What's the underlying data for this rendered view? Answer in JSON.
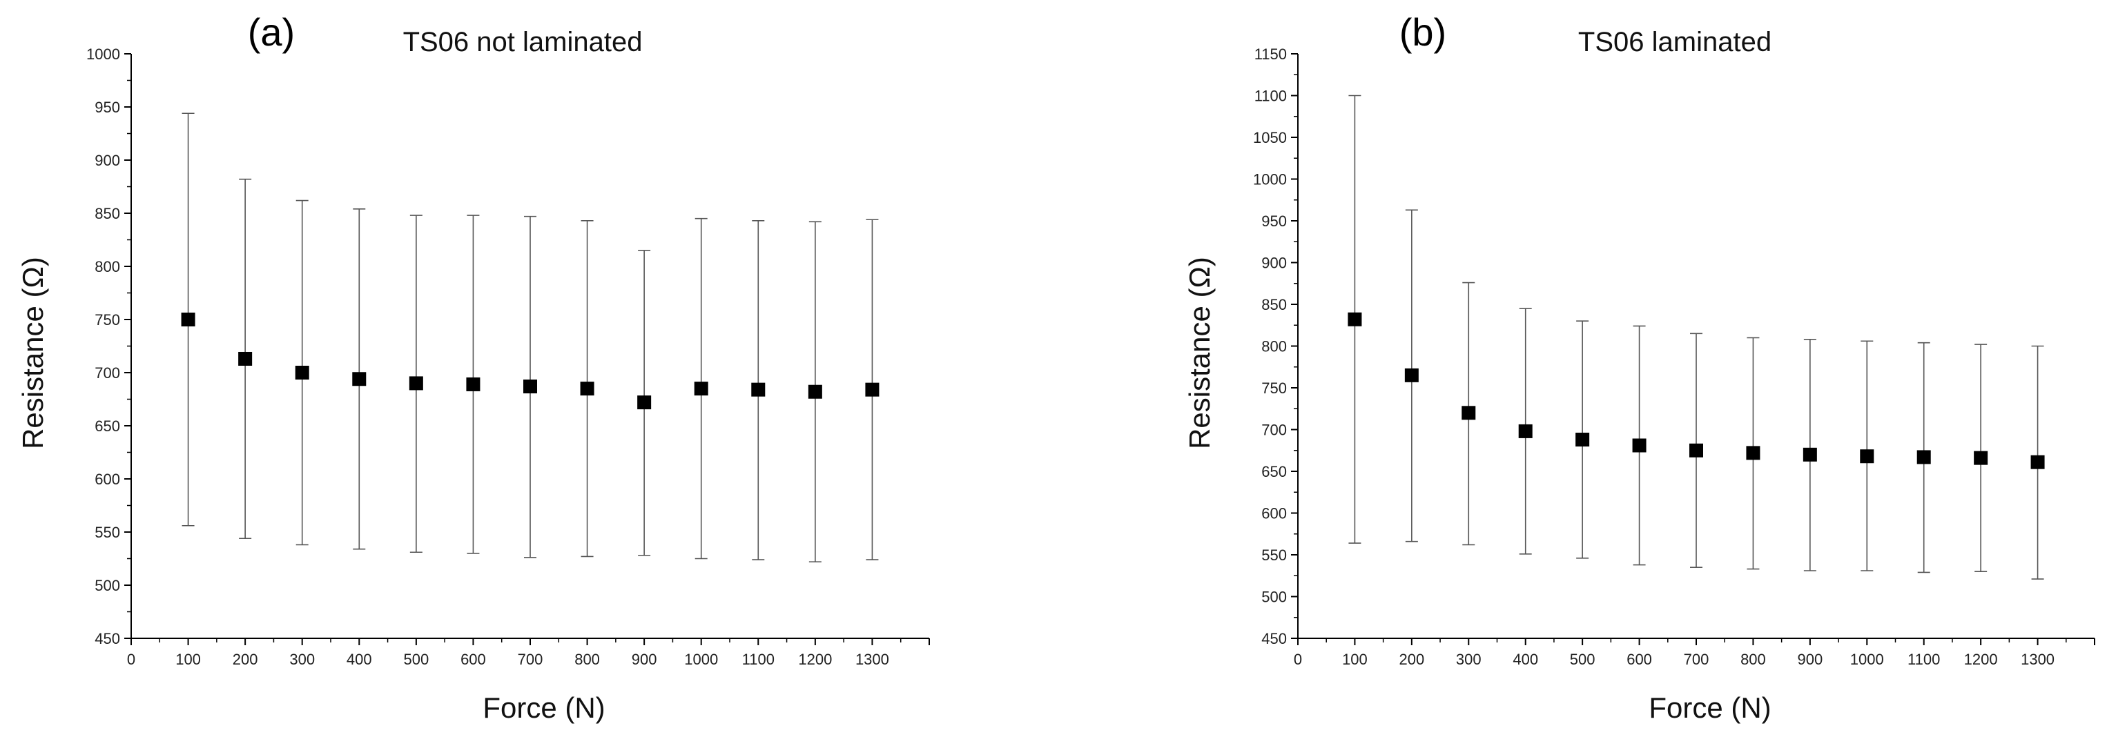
{
  "chart_data": [
    {
      "type": "scatter",
      "panel_label": "(a)",
      "title": "TS06 not laminated",
      "xlabel": "Force (N)",
      "ylabel": "Resistance (Ω)",
      "xlim": [
        0,
        1400
      ],
      "ylim": [
        450,
        1000
      ],
      "xticks": [
        0,
        100,
        200,
        300,
        400,
        500,
        600,
        700,
        800,
        900,
        1000,
        1100,
        1200,
        1300
      ],
      "yticks": [
        450,
        500,
        550,
        600,
        650,
        700,
        750,
        800,
        850,
        900,
        950,
        1000
      ],
      "grid": false,
      "series": [
        {
          "x": [
            100,
            200,
            300,
            400,
            500,
            600,
            700,
            800,
            900,
            1000,
            1100,
            1200,
            1300
          ],
          "y": [
            750,
            713,
            700,
            694,
            690,
            689,
            687,
            685,
            672,
            685,
            684,
            682,
            684
          ],
          "y_upper": [
            944,
            882,
            862,
            854,
            848,
            848,
            847,
            843,
            815,
            845,
            843,
            842,
            844
          ],
          "y_lower": [
            556,
            544,
            538,
            534,
            531,
            530,
            526,
            527,
            528,
            525,
            524,
            522,
            524
          ]
        }
      ]
    },
    {
      "type": "scatter",
      "panel_label": "(b)",
      "title": "TS06 laminated",
      "xlabel": "Force (N)",
      "ylabel": "Resistance (Ω)",
      "xlim": [
        0,
        1400
      ],
      "ylim": [
        450,
        1150
      ],
      "xticks": [
        0,
        100,
        200,
        300,
        400,
        500,
        600,
        700,
        800,
        900,
        1000,
        1100,
        1200,
        1300
      ],
      "yticks": [
        450,
        500,
        550,
        600,
        650,
        700,
        750,
        800,
        850,
        900,
        950,
        1000,
        1050,
        1100,
        1150
      ],
      "grid": false,
      "series": [
        {
          "x": [
            100,
            200,
            300,
            400,
            500,
            600,
            700,
            800,
            900,
            1000,
            1100,
            1200,
            1300
          ],
          "y": [
            832,
            765,
            720,
            698,
            688,
            681,
            675,
            672,
            670,
            668,
            667,
            666,
            661
          ],
          "y_upper": [
            1100,
            963,
            876,
            845,
            830,
            824,
            815,
            810,
            808,
            806,
            804,
            802,
            800
          ],
          "y_lower": [
            564,
            566,
            562,
            551,
            546,
            538,
            535,
            533,
            531,
            531,
            529,
            530,
            521
          ]
        }
      ]
    }
  ]
}
